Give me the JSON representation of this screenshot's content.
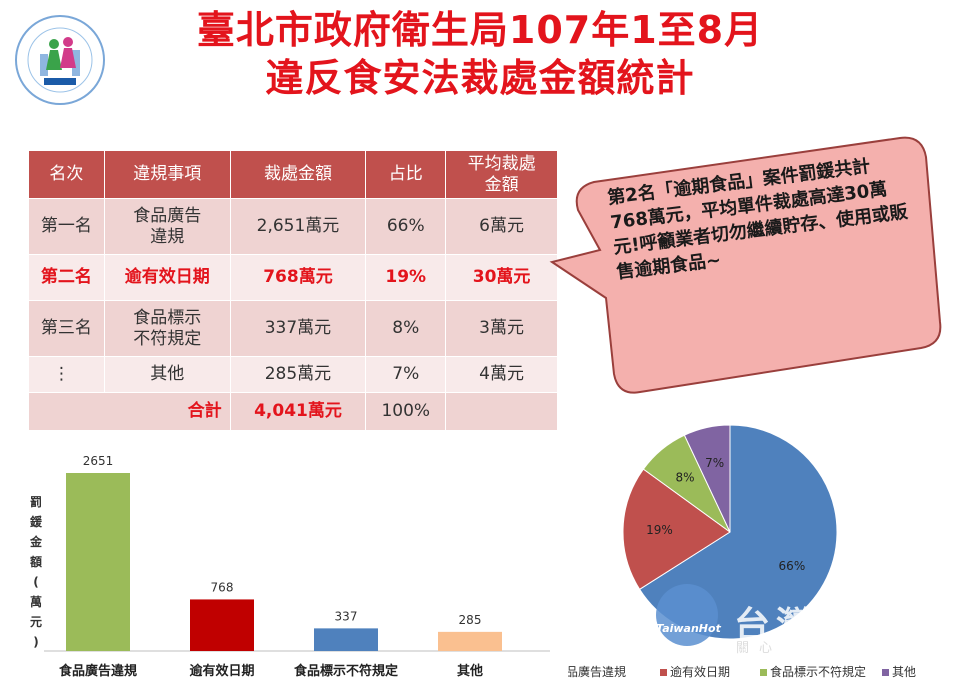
{
  "title": {
    "line1": "臺北市政府衛生局107年1至8月",
    "line2": "違反食安法裁處金額統計"
  },
  "table": {
    "headers": [
      "名次",
      "違規事項",
      "裁處金額",
      "占比",
      "平均裁處金額"
    ],
    "rows": [
      {
        "rank": "第一名",
        "item": "食品廣告違規",
        "amount": "2,651萬元",
        "share": "66%",
        "avg": "6萬元"
      },
      {
        "rank": "第二名",
        "item": "逾有效日期",
        "amount": "768萬元",
        "share": "19%",
        "avg": "30萬元"
      },
      {
        "rank": "第三名",
        "item": "食品標示不符規定",
        "amount": "337萬元",
        "share": "8%",
        "avg": "3萬元"
      },
      {
        "rank": "⋮",
        "item": "其他",
        "amount": "285萬元",
        "share": "7%",
        "avg": "4萬元"
      }
    ],
    "total": {
      "label": "合計",
      "amount": "4,041萬元",
      "share": "100%"
    }
  },
  "callout": {
    "text": "第2名「逾期食品」案件罰鍰共計768萬元，平均單件裁處高達30萬元!呼籲業者切勿繼續貯存、使用或販售逾期食品~"
  },
  "watermark": {
    "brand": "台灣",
    "sub": "關心",
    "logo": "TaiwanHot"
  },
  "chart_data": [
    {
      "type": "bar",
      "categories": [
        "食品廣告違規",
        "逾有效日期",
        "食品標示不符規定",
        "其他"
      ],
      "values": [
        2651,
        768,
        337,
        285
      ],
      "data_labels": [
        "2651",
        "768",
        "337",
        "285"
      ],
      "ylabel": "罰鍰金額(萬元)",
      "ylim": [
        0,
        2651
      ],
      "grid": false,
      "colors": [
        "#9bbb59",
        "#c00000",
        "#4f81bd",
        "#fac090"
      ]
    },
    {
      "type": "pie",
      "categories": [
        "食品廣告違規",
        "逾有效日期",
        "食品標示不符規定",
        "其他"
      ],
      "values": [
        66,
        19,
        8,
        7
      ],
      "data_labels": [
        "66%",
        "19%",
        "8%",
        "7%"
      ],
      "legend": "bottom",
      "colors": [
        "#4f81bd",
        "#c0504d",
        "#9bbb59",
        "#8064a2"
      ]
    }
  ]
}
